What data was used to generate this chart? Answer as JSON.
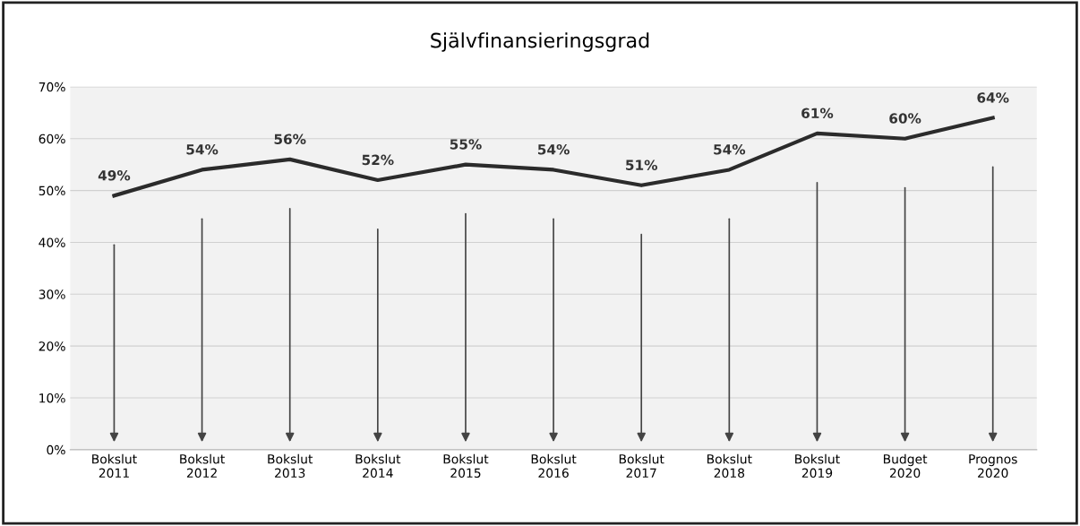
{
  "chart_data": {
    "type": "line",
    "title": "Självfinansieringsgrad",
    "categories": [
      "Bokslut\n2011",
      "Bokslut\n2012",
      "Bokslut\n2013",
      "Bokslut\n2014",
      "Bokslut\n2015",
      "Bokslut\n2016",
      "Bokslut\n2017",
      "Bokslut\n2018",
      "Bokslut\n2019",
      "Budget\n2020",
      "Prognos\n2020"
    ],
    "series": [
      {
        "color": "#2b2b2b",
        "values": [
          49,
          54,
          56,
          52,
          55,
          54,
          51,
          54,
          61,
          60,
          64
        ]
      }
    ],
    "value_labels": [
      "49%",
      "54%",
      "56%",
      "52%",
      "55%",
      "54%",
      "51%",
      "54%",
      "61%",
      "60%",
      "64%"
    ],
    "ylim": [
      0,
      70
    ],
    "yticks": [
      {
        "value": 0,
        "label": "0%"
      },
      {
        "value": 10,
        "label": "10%"
      },
      {
        "value": 20,
        "label": "20%"
      },
      {
        "value": 30,
        "label": "30%"
      },
      {
        "value": 40,
        "label": "40%"
      },
      {
        "value": 50,
        "label": "50%"
      },
      {
        "value": 60,
        "label": "60%"
      },
      {
        "value": 70,
        "label": "70%"
      }
    ],
    "grid": "y",
    "legend": false,
    "marker": "none",
    "line_style": "solid"
  }
}
